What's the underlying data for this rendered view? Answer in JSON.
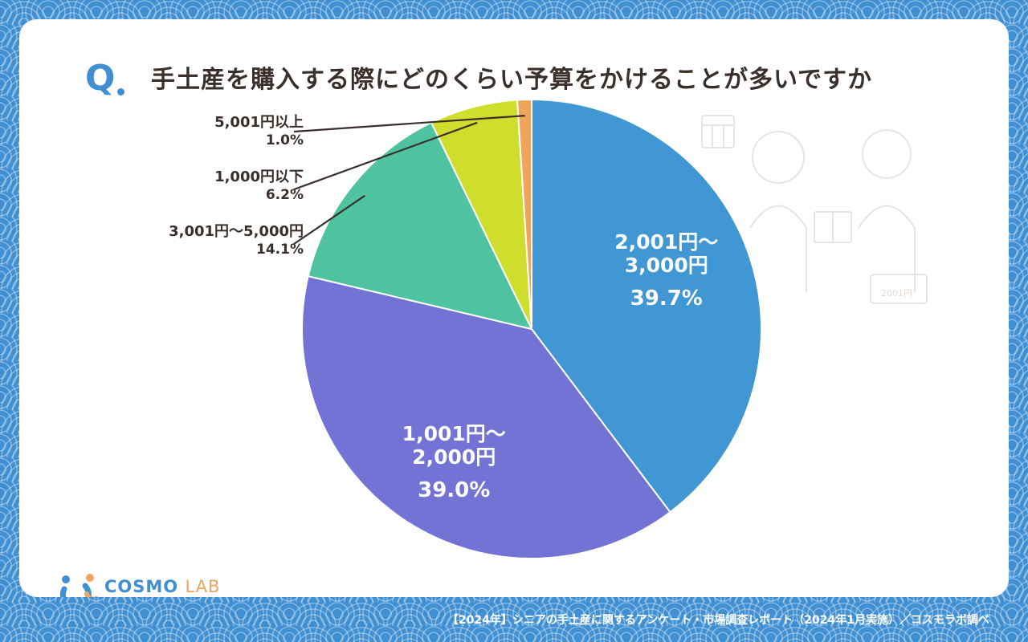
{
  "question_mark": "Q",
  "title": "手土産を購入する際にどのくらい予算をかけることが多いですか",
  "footer": "【2024年】シニアの手土産に関するアンケート・市場調査レポート（2024年1月実施）／コスモラボ調べ",
  "logo": {
    "main": "COSMO",
    "sub": "LAB"
  },
  "decor": {
    "price_tag": "2001円"
  },
  "colors": {
    "background": "#3f8fd2",
    "card": "#ffffff",
    "text": "#3a2f2b",
    "accent": "#3f8fd2",
    "logo_orange": "#f0a45c"
  },
  "chart_data": {
    "type": "pie",
    "start": "top",
    "direction": "clockwise",
    "slices": [
      {
        "label": "2,001円〜3,000円",
        "label_lines": [
          "2,001円〜",
          "3,000円"
        ],
        "pct_text": "39.7%",
        "value": 39.7,
        "color": "#4196d4",
        "label_position": "inside"
      },
      {
        "label": "1,001円〜2,000円",
        "label_lines": [
          "1,001円〜",
          "2,000円"
        ],
        "pct_text": "39.0%",
        "value": 39.0,
        "color": "#7373d6",
        "label_position": "inside"
      },
      {
        "label": "3,001円〜5,000円",
        "label_lines": [
          "3,001円〜5,000円"
        ],
        "pct_text": "14.1%",
        "value": 14.1,
        "color": "#4fc2a0",
        "label_position": "outside"
      },
      {
        "label": "1,000円以下",
        "label_lines": [
          "1,000円以下"
        ],
        "pct_text": "6.2%",
        "value": 6.2,
        "color": "#cfde2d",
        "label_position": "outside"
      },
      {
        "label": "5,001円以上",
        "label_lines": [
          "5,001円以上"
        ],
        "pct_text": "1.0%",
        "value": 1.0,
        "color": "#f0a45c",
        "label_position": "outside"
      }
    ]
  }
}
